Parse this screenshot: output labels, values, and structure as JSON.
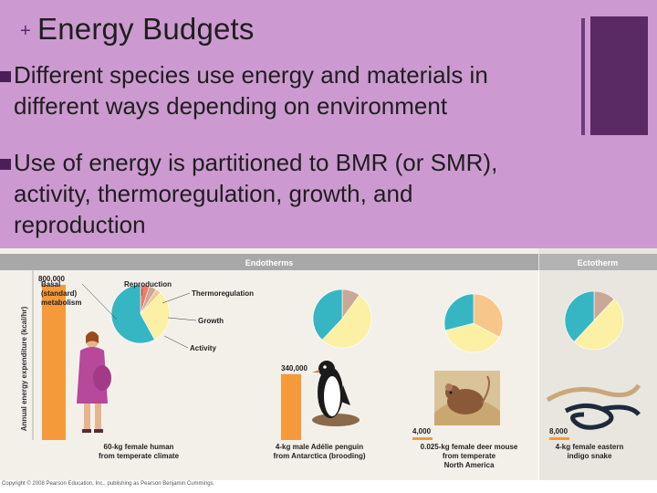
{
  "slide": {
    "plus": "+",
    "title": "Energy Budgets",
    "bullets": [
      {
        "lines": [
          "Different species use energy and materials in",
          "different ways depending on environment"
        ]
      },
      {
        "lines": [
          "Use of energy is partitioned to BMR (or SMR),",
          "activity, thermoregulation, growth, and",
          "reproduction"
        ]
      }
    ]
  },
  "copyright": "Copyright © 2008 Pearson Education, Inc., publishing as Pearson Benjamin Cummings.",
  "colors": {
    "bar": "#f59a3a",
    "reproduction": "#f07a6a",
    "thermoregulation": "#c9a898",
    "growth": "#f7c68a",
    "activity": "#fbf0a4",
    "basal": "#36b6c2",
    "header_endo": "#a8a8a8",
    "header_ecto": "#b3b3b3",
    "accent": "#5a2a64"
  },
  "chart_data": {
    "type": "bar",
    "groups": [
      "Endotherms",
      "Ectotherm"
    ],
    "ylabel": "Annual energy expenditure (kcal/hr)",
    "categories": [
      {
        "label": [
          "60-kg female human",
          "from temperate climate"
        ],
        "group": "Endotherms"
      },
      {
        "label": [
          "4-kg male Adélie penguin",
          "from Antarctica (brooding)"
        ],
        "group": "Endotherms"
      },
      {
        "label": [
          "0.025-kg female deer mouse",
          "from temperate",
          "North America"
        ],
        "group": "Endotherms"
      },
      {
        "label": [
          "4-kg female eastern",
          "indigo snake"
        ],
        "group": "Ectotherm"
      }
    ],
    "values": [
      800000,
      340000,
      4000,
      8000
    ],
    "value_labels": [
      "800,000",
      "340,000",
      "4,000",
      "8,000"
    ],
    "ylim": [
      0,
      800000
    ],
    "pie_legend": [
      {
        "name": "Reproduction",
        "color_key": "reproduction"
      },
      {
        "name": "Thermoregulation",
        "color_key": "thermoregulation"
      },
      {
        "name": "Growth",
        "color_key": "growth"
      },
      {
        "name": "Activity",
        "color_key": "activity"
      },
      {
        "name": "Basal (standard) metabolism",
        "display_lines": [
          "Basal",
          "(standard)",
          "metabolism"
        ],
        "color_key": "basal"
      }
    ],
    "pies": [
      {
        "slices": [
          {
            "name": "Reproduction",
            "value": 0.05
          },
          {
            "name": "Thermoregulation",
            "value": 0.04
          },
          {
            "name": "Growth",
            "value": 0.03
          },
          {
            "name": "Activity",
            "value": 0.3
          },
          {
            "name": "Basal (standard) metabolism",
            "value": 0.58
          }
        ]
      },
      {
        "slices": [
          {
            "name": "Reproduction",
            "value": 0.0
          },
          {
            "name": "Thermoregulation",
            "value": 0.1
          },
          {
            "name": "Growth",
            "value": 0.0
          },
          {
            "name": "Activity",
            "value": 0.52
          },
          {
            "name": "Basal (standard) metabolism",
            "value": 0.38
          }
        ]
      },
      {
        "slices": [
          {
            "name": "Reproduction",
            "value": 0.0
          },
          {
            "name": "Thermoregulation",
            "value": 0.0
          },
          {
            "name": "Growth",
            "value": 0.33
          },
          {
            "name": "Activity",
            "value": 0.38
          },
          {
            "name": "Basal (standard) metabolism",
            "value": 0.29
          }
        ]
      },
      {
        "slices": [
          {
            "name": "Reproduction",
            "value": 0.0
          },
          {
            "name": "Thermoregulation",
            "value": 0.12
          },
          {
            "name": "Growth",
            "value": 0.0
          },
          {
            "name": "Activity",
            "value": 0.5
          },
          {
            "name": "Basal (standard) metabolism",
            "value": 0.38
          }
        ]
      }
    ],
    "pictures": [
      "woman-illustration",
      "penguin-illustration",
      "deer-mouse-photo",
      "indigo-snake-photo"
    ]
  }
}
